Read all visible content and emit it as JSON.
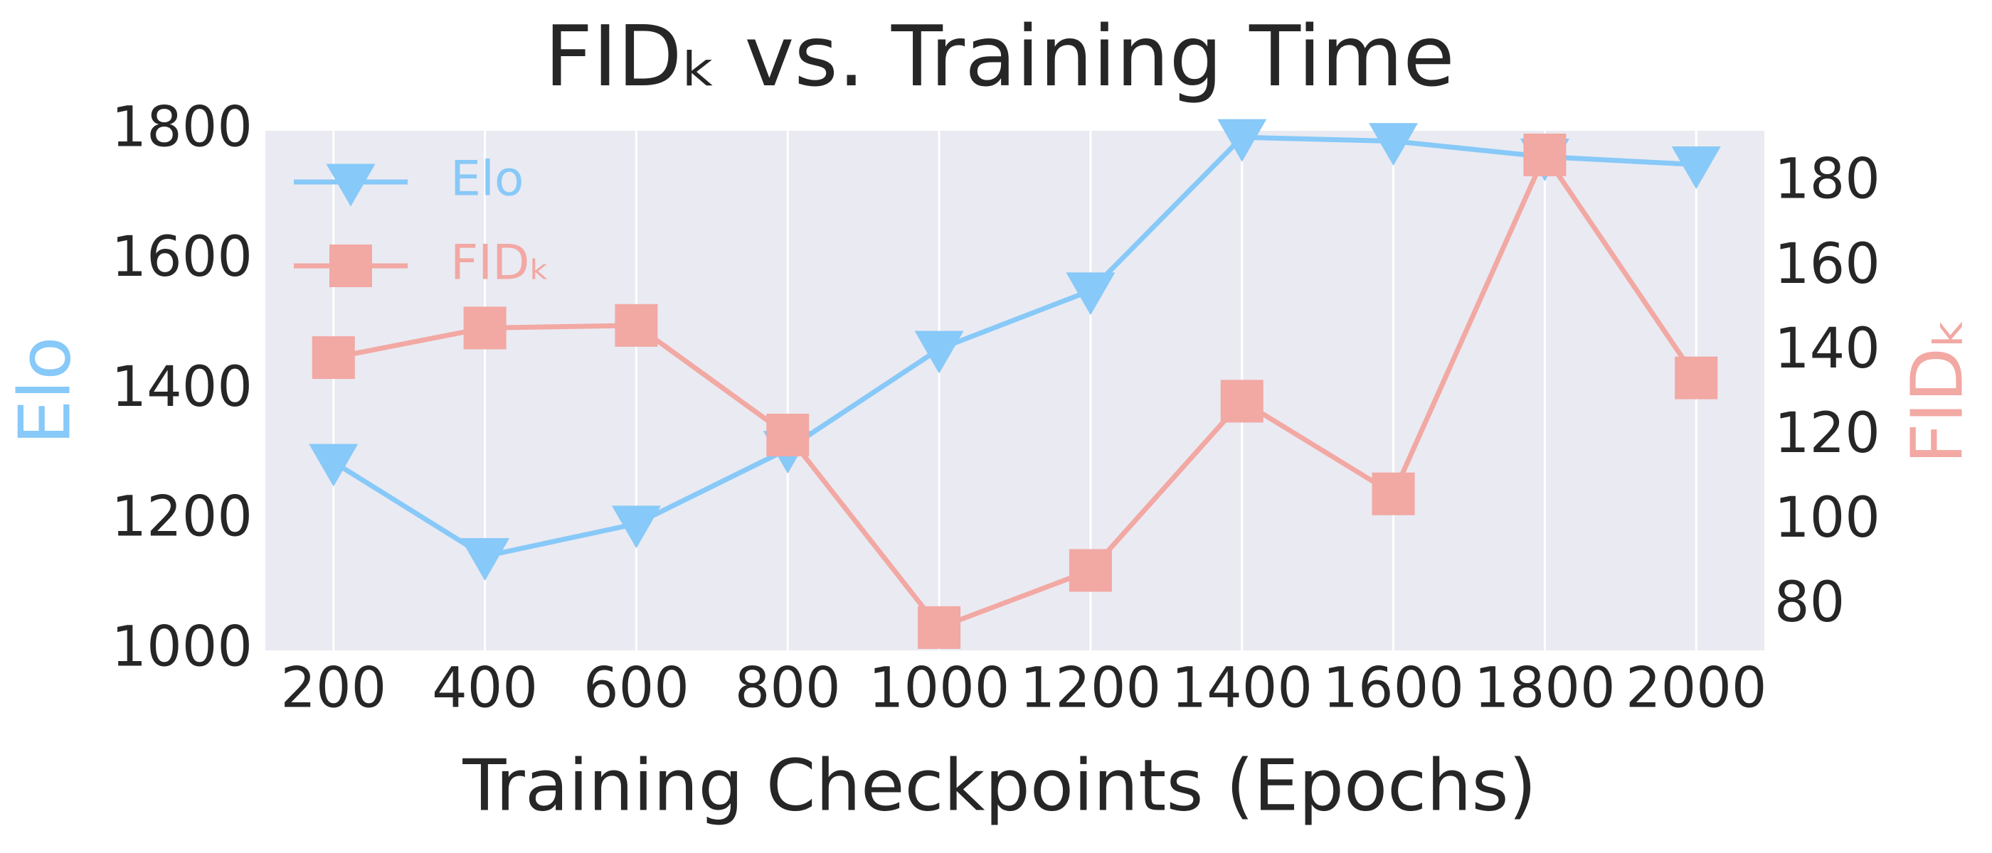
{
  "chart_data": {
    "type": "line",
    "title": "FIDₖ vs. Training Time",
    "x_label": "Training Checkpoints (Epochs)",
    "y_label": "Elo",
    "y2_label": "FIDₖ",
    "x": [
      200,
      400,
      600,
      800,
      1000,
      1200,
      1400,
      1600,
      1800,
      2000
    ],
    "xlim": [
      110,
      2090
    ],
    "xticks": [
      200,
      400,
      600,
      800,
      1000,
      1200,
      1400,
      1600,
      1800,
      2000
    ],
    "ylim": [
      1000,
      1800
    ],
    "yticks": [
      1000,
      1200,
      1400,
      1600,
      1800
    ],
    "y2lim": [
      69.5,
      192.3
    ],
    "y2ticks": [
      80,
      100,
      120,
      140,
      160,
      180
    ],
    "grid": "x",
    "legend": "upper left",
    "series": [
      {
        "name": "Elo",
        "color": "#87c9f8",
        "marker": "triangle-down",
        "axis": "y",
        "values": [
          1290,
          1145,
          1195,
          1310,
          1464,
          1554,
          1790,
          1784,
          1760,
          1748
        ]
      },
      {
        "name": "FIDₖ",
        "color": "#f2a8a3",
        "marker": "square",
        "axis": "y2",
        "values": [
          138.7,
          145.7,
          146.3,
          120.4,
          74.9,
          88.4,
          128.4,
          106.5,
          186.6,
          133.9
        ]
      }
    ]
  }
}
